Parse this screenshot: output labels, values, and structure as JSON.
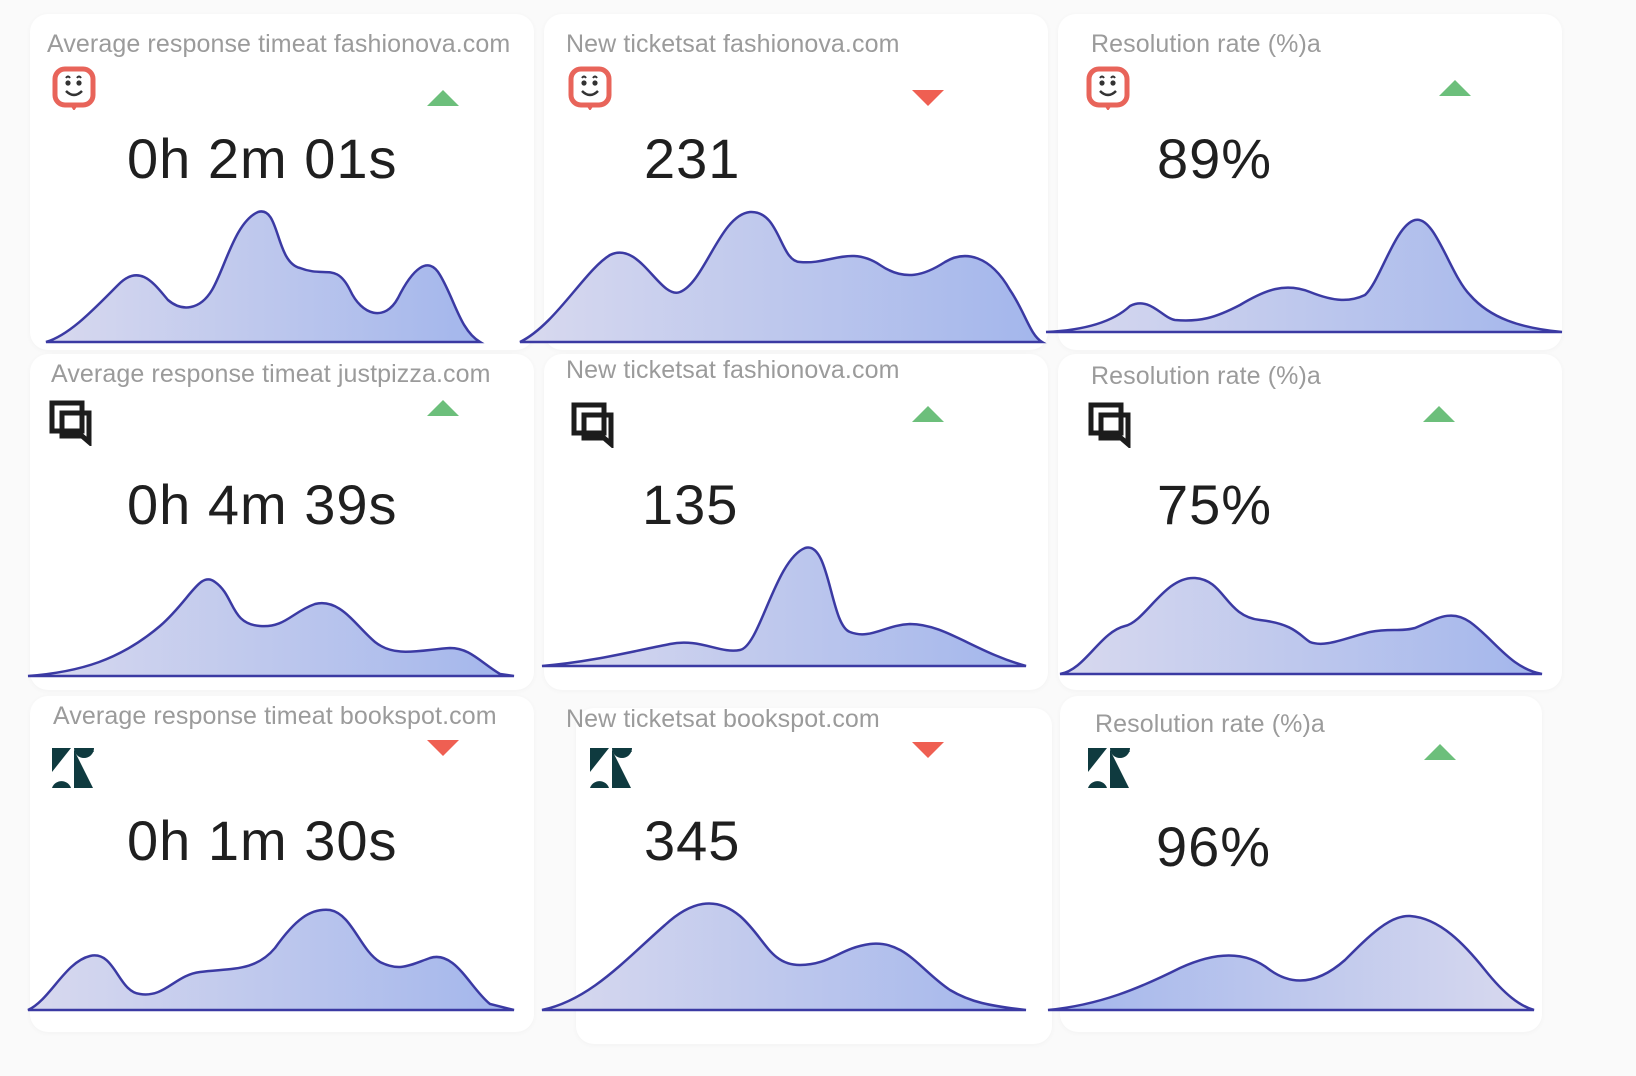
{
  "colors": {
    "trend_up": "#6cbf7b",
    "trend_down": "#ef5f52",
    "line": "#3b3aa3",
    "fill_light": "#d7d9ee",
    "fill_dark": "#9fb3eb",
    "source_a": "#e8645a",
    "source_b": "#1c1c1c",
    "source_c": "#0f3a3f"
  },
  "cards": [
    {
      "title": "Average response timeat fashionova.com",
      "value": "0h 2m 01s",
      "trend": "up",
      "source_icon": "smile-chat-icon"
    },
    {
      "title": "New ticketsat fashionova.com",
      "value": "231",
      "trend": "down",
      "source_icon": "smile-chat-icon"
    },
    {
      "title": "Resolution rate (%)a",
      "value": "89%",
      "trend": "up",
      "source_icon": "smile-chat-icon"
    },
    {
      "title": "Average response timeat justpizza.com",
      "value": "0h 4m 39s",
      "trend": "up",
      "source_icon": "stacked-chat-icon"
    },
    {
      "title": "New ticketsat fashionova.com",
      "value": "135",
      "trend": "up",
      "source_icon": "stacked-chat-icon"
    },
    {
      "title": "Resolution rate (%)a",
      "value": "75%",
      "trend": "up",
      "source_icon": "stacked-chat-icon"
    },
    {
      "title": "Average response timeat bookspot.com",
      "value": "0h 1m 30s",
      "trend": "down",
      "source_icon": "zendesk-icon"
    },
    {
      "title": "New ticketsat bookspot.com",
      "value": "345",
      "trend": "down",
      "source_icon": "zendesk-icon"
    },
    {
      "title": "Resolution rate (%)a",
      "value": "96%",
      "trend": "up",
      "source_icon": "zendesk-icon"
    }
  ]
}
